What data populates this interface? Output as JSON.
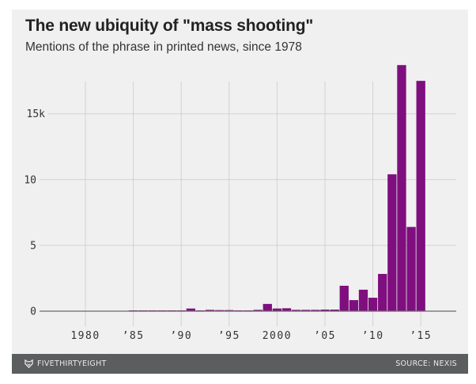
{
  "chart_data": {
    "type": "bar",
    "title": "The new ubiquity of \"mass shooting\"",
    "subtitle": "Mentions of the phrase in printed news, since 1978",
    "xlabel": "",
    "ylabel": "",
    "x": [
      1978,
      1979,
      1980,
      1981,
      1982,
      1983,
      1984,
      1985,
      1986,
      1987,
      1988,
      1989,
      1990,
      1991,
      1992,
      1993,
      1994,
      1995,
      1996,
      1997,
      1998,
      1999,
      2000,
      2001,
      2002,
      2003,
      2004,
      2005,
      2006,
      2007,
      2008,
      2009,
      2010,
      2011,
      2012,
      2013,
      2014,
      2015
    ],
    "values": [
      0,
      0,
      0,
      0,
      0,
      0,
      0,
      0.01,
      0.01,
      0.02,
      0.02,
      0.03,
      0.03,
      0.2,
      0.04,
      0.1,
      0.08,
      0.08,
      0.06,
      0.03,
      0.1,
      0.55,
      0.2,
      0.22,
      0.1,
      0.1,
      0.1,
      0.12,
      0.12,
      1.93,
      0.84,
      1.63,
      1.02,
      2.83,
      10.4,
      18.7,
      6.4,
      17.5
    ],
    "units": "thousands of mentions",
    "color": "#7f0f7e",
    "xlim": [
      1976,
      2018
    ],
    "ylim": [
      0,
      19
    ],
    "y_ticks": [
      {
        "value": 0,
        "label": "0"
      },
      {
        "value": 5,
        "label": "5"
      },
      {
        "value": 10,
        "label": "10"
      },
      {
        "value": 15,
        "label": "15k"
      }
    ],
    "x_ticks": [
      {
        "value": 1980,
        "label": "1980"
      },
      {
        "value": 1985,
        "label": "'85"
      },
      {
        "value": 1990,
        "label": "'90"
      },
      {
        "value": 1995,
        "label": "'95"
      },
      {
        "value": 2000,
        "label": "2000"
      },
      {
        "value": 2005,
        "label": "'05"
      },
      {
        "value": 2010,
        "label": "'10"
      },
      {
        "value": 2015,
        "label": "'15"
      }
    ],
    "grid": true,
    "legend": "none"
  },
  "footer": {
    "brand": "FIVETHIRTYEIGHT",
    "source": "SOURCE: NEXIS",
    "logo_icon": "fox-logo-icon"
  },
  "colors": {
    "panel_background": "#f0f0f0",
    "footer_background": "#5b5e5f",
    "bar": "#7f0f7e"
  }
}
